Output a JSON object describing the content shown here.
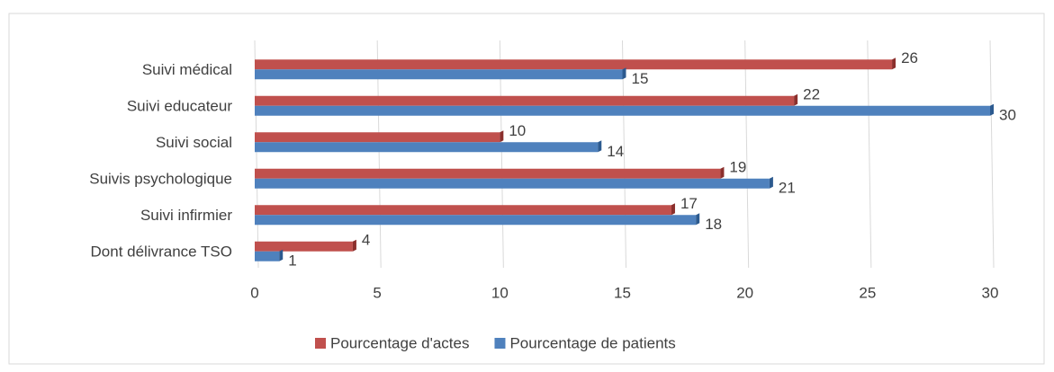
{
  "chart_data": {
    "type": "hbar",
    "categories": [
      "Suivi médical",
      "Suivi educateur",
      "Suivi social",
      "Suivis psychologique",
      "Suivi infirmier",
      "Dont délivrance TSO"
    ],
    "series": [
      {
        "name": "Pourcentage d'actes",
        "color": "#c0504d",
        "values": [
          26,
          22,
          10,
          19,
          17,
          4
        ]
      },
      {
        "name": "Pourcentage de patients",
        "color": "#4f81bd",
        "values": [
          15,
          30,
          14,
          21,
          18,
          1
        ]
      }
    ],
    "xlim": [
      0,
      30
    ],
    "xticks": [
      0,
      5,
      10,
      15,
      20,
      25,
      30
    ],
    "grid": true,
    "legend": "bottom"
  }
}
